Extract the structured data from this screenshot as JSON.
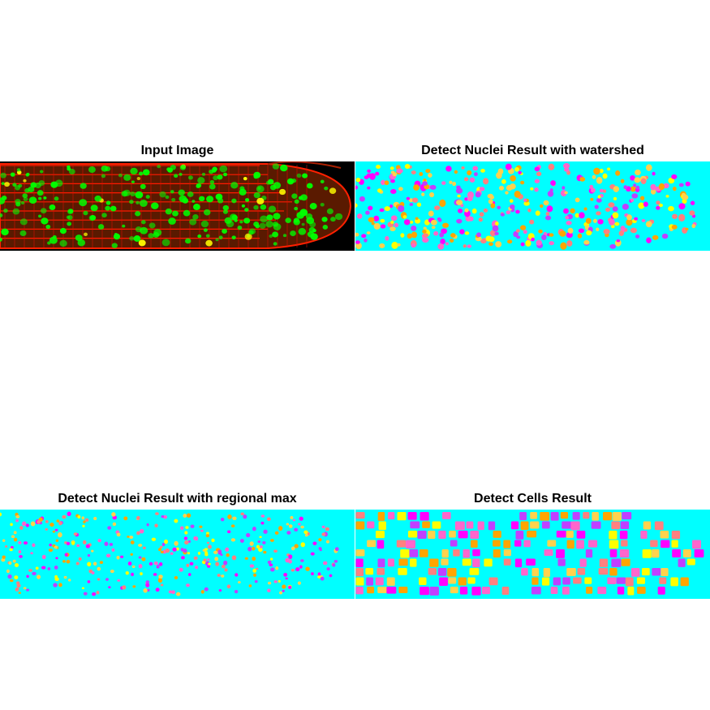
{
  "panels": [
    {
      "id": "input",
      "title": "Input Image"
    },
    {
      "id": "watershed",
      "title": "Detect Nuclei Result with watershed"
    },
    {
      "id": "regional",
      "title": "Detect Nuclei Result with regional max"
    },
    {
      "id": "cells",
      "title": "Detect Cells Result"
    }
  ],
  "colors": {
    "background_label": "#00ffff",
    "label_palette": [
      "#ff00ff",
      "#ffff00",
      "#ff8080",
      "#ffa500",
      "#c040ff",
      "#ff66cc",
      "#ffd24d"
    ],
    "membrane": "#ff0000",
    "nucleus": "#00ff00",
    "image_bg": "#000000"
  }
}
